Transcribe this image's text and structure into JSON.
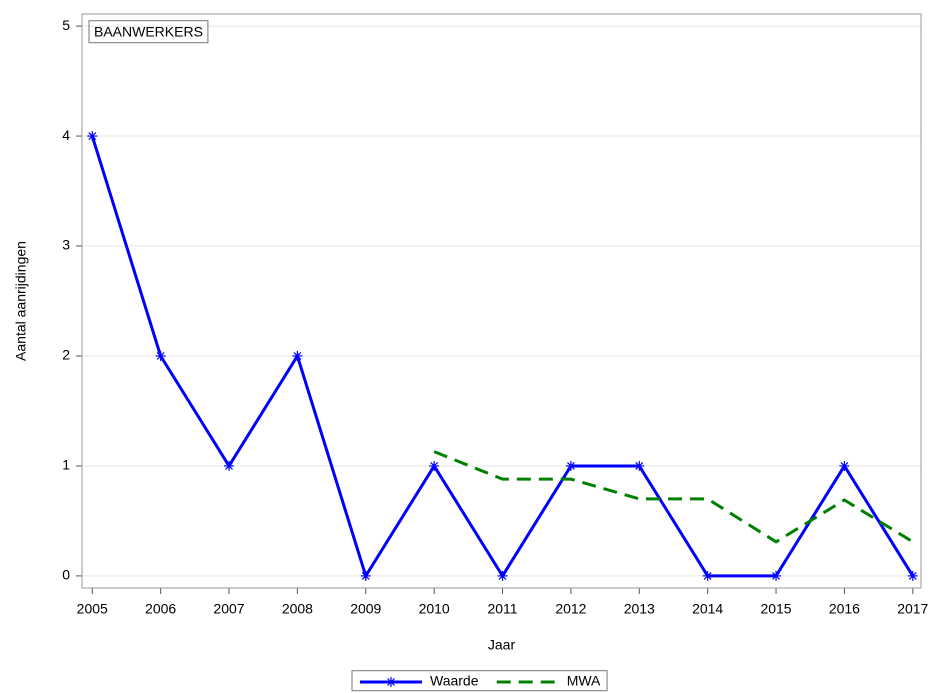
{
  "chart_data": {
    "type": "line",
    "inset_label": "BAANWERKERS",
    "x_label": "Jaar",
    "y_label": "Aantal aanrijdingen",
    "x": [
      2005,
      2006,
      2007,
      2008,
      2009,
      2010,
      2011,
      2012,
      2013,
      2014,
      2015,
      2016,
      2017
    ],
    "series": [
      {
        "name": "Waarde",
        "color": "#0000ff",
        "marker": "star",
        "dash": false,
        "values": [
          4,
          2,
          1,
          2,
          0,
          1,
          0,
          1,
          1,
          0,
          0,
          1,
          0
        ]
      },
      {
        "name": "MWA",
        "color": "#008000",
        "marker": "none",
        "dash": true,
        "values": [
          null,
          null,
          null,
          null,
          null,
          1.13,
          0.88,
          0.88,
          0.7,
          0.7,
          0.31,
          0.69,
          0.31
        ]
      }
    ],
    "xlim": [
      2004.85,
      2017.12
    ],
    "xticks": [
      2005,
      2006,
      2007,
      2008,
      2009,
      2010,
      2011,
      2012,
      2013,
      2014,
      2015,
      2016,
      2017
    ],
    "ylim": [
      -0.11,
      5.11
    ],
    "yticks": [
      0,
      1,
      2,
      3,
      4,
      5
    ],
    "grid": true,
    "legend": "bottom"
  }
}
